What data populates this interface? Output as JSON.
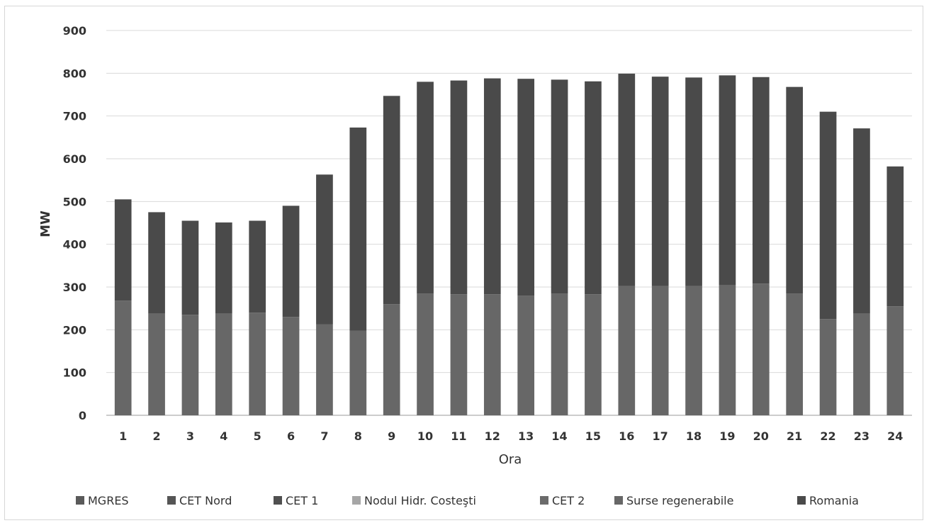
{
  "chart_data": {
    "type": "bar",
    "stacked": true,
    "xlabel": "Ora",
    "ylabel": "MW",
    "ylim": [
      0,
      900
    ],
    "yticks": [
      "0",
      "100",
      "200",
      "300",
      "400",
      "500",
      "600",
      "700",
      "800",
      "900"
    ],
    "grid": true,
    "legend_position": "bottom",
    "categories": [
      "1",
      "2",
      "3",
      "4",
      "5",
      "6",
      "7",
      "8",
      "9",
      "10",
      "11",
      "12",
      "13",
      "14",
      "15",
      "16",
      "17",
      "18",
      "19",
      "20",
      "21",
      "22",
      "23",
      "24"
    ],
    "series": [
      {
        "name": "MGRES",
        "color": "#5a5a5a",
        "values": [
          0,
          0,
          0,
          0,
          0,
          0,
          0,
          0,
          0,
          0,
          0,
          0,
          0,
          0,
          0,
          0,
          0,
          0,
          0,
          0,
          0,
          0,
          0,
          0
        ]
      },
      {
        "name": "CET Nord",
        "color": "#555555",
        "values": [
          0,
          0,
          0,
          0,
          0,
          0,
          0,
          0,
          0,
          0,
          0,
          0,
          0,
          0,
          0,
          0,
          0,
          0,
          0,
          0,
          0,
          0,
          0,
          0
        ]
      },
      {
        "name": "CET 1",
        "color": "#505050",
        "values": [
          0,
          0,
          0,
          0,
          0,
          0,
          0,
          0,
          0,
          0,
          0,
          0,
          0,
          0,
          0,
          0,
          0,
          0,
          0,
          0,
          0,
          0,
          0,
          0
        ]
      },
      {
        "name": "Nodul Hidr. Costeşti",
        "color": "#a6a6a6",
        "values": [
          0,
          0,
          0,
          0,
          0,
          0,
          0,
          0,
          0,
          0,
          0,
          0,
          0,
          0,
          0,
          0,
          0,
          0,
          0,
          0,
          0,
          0,
          0,
          0
        ]
      },
      {
        "name": "CET 2",
        "color": "#6b6b6b",
        "values": [
          0,
          0,
          0,
          0,
          0,
          0,
          0,
          0,
          0,
          0,
          0,
          0,
          0,
          0,
          0,
          0,
          0,
          0,
          0,
          0,
          0,
          0,
          0,
          0
        ]
      },
      {
        "name": "Surse regenerabile",
        "color": "#676767",
        "values": [
          268,
          238,
          235,
          238,
          240,
          230,
          213,
          198,
          260,
          285,
          283,
          283,
          280,
          285,
          283,
          302,
          302,
          302,
          305,
          308,
          285,
          225,
          238,
          255
        ]
      },
      {
        "name": "Romania",
        "color": "#4a4a4a",
        "values": [
          237,
          237,
          220,
          213,
          215,
          260,
          350,
          475,
          487,
          495,
          500,
          505,
          507,
          500,
          498,
          497,
          490,
          488,
          490,
          483,
          483,
          485,
          433,
          327
        ]
      }
    ]
  }
}
